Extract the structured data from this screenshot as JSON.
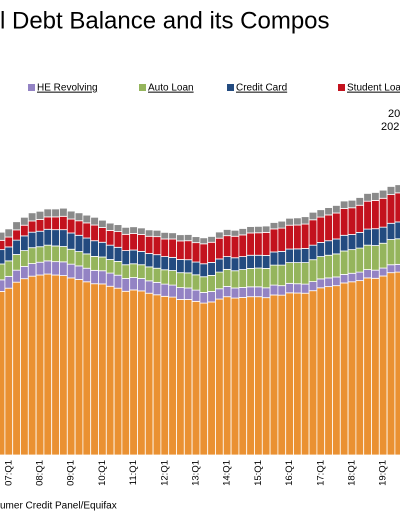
{
  "chart_data": {
    "type": "stacked-bar",
    "title": "l Debt Balance and its Compos",
    "annotations": [
      "20",
      "202"
    ],
    "source": "umer Credit Panel/Equifax",
    "categories": [
      null,
      "07:Q1",
      null,
      null,
      null,
      "08:Q1",
      null,
      null,
      null,
      "09:Q1",
      null,
      null,
      null,
      "10:Q1",
      null,
      null,
      null,
      "11:Q1",
      null,
      null,
      null,
      "12:Q1",
      null,
      null,
      null,
      "13:Q1",
      null,
      null,
      null,
      "14:Q1",
      null,
      null,
      null,
      "15:Q1",
      null,
      null,
      null,
      "16:Q1",
      null,
      null,
      null,
      "17:Q1",
      null,
      null,
      null,
      "18:Q1",
      null,
      null,
      null,
      "19:Q1",
      null,
      null
    ],
    "ylim": [
      0,
      16
    ],
    "series": [
      {
        "color": "#ea9132",
        "values": [
          8.44,
          8.61,
          8.92,
          9.1,
          9.23,
          9.29,
          9.34,
          9.29,
          9.26,
          9.14,
          9.06,
          8.94,
          8.84,
          8.83,
          8.71,
          8.61,
          8.45,
          8.52,
          8.47,
          8.35,
          8.27,
          8.19,
          8.15,
          8.03,
          8.03,
          7.93,
          7.84,
          7.9,
          8.05,
          8.17,
          8.1,
          8.13,
          8.17,
          8.17,
          8.12,
          8.26,
          8.25,
          8.37,
          8.36,
          8.35,
          8.48,
          8.63,
          8.69,
          8.74,
          8.88,
          8.94,
          9.0,
          9.14,
          9.12,
          9.24,
          9.41,
          9.44
        ]
      },
      {
        "name": "HE Revolving",
        "color": "#9383c4",
        "values": [
          0.6,
          0.61,
          0.62,
          0.63,
          0.65,
          0.66,
          0.68,
          0.69,
          0.71,
          0.71,
          0.7,
          0.7,
          0.69,
          0.68,
          0.68,
          0.67,
          0.66,
          0.64,
          0.64,
          0.64,
          0.64,
          0.63,
          0.62,
          0.61,
          0.59,
          0.58,
          0.55,
          0.54,
          0.53,
          0.53,
          0.52,
          0.52,
          0.51,
          0.51,
          0.51,
          0.51,
          0.49,
          0.49,
          0.48,
          0.47,
          0.47,
          0.46,
          0.45,
          0.45,
          0.44,
          0.44,
          0.44,
          0.43,
          0.42,
          0.41,
          0.41,
          0.4
        ]
      },
      {
        "name": "Auto Loan",
        "color": "#95b55c",
        "values": [
          0.82,
          0.8,
          0.81,
          0.82,
          0.82,
          0.8,
          0.81,
          0.81,
          0.79,
          0.77,
          0.74,
          0.74,
          0.72,
          0.71,
          0.7,
          0.71,
          0.71,
          0.71,
          0.71,
          0.72,
          0.73,
          0.74,
          0.75,
          0.77,
          0.78,
          0.79,
          0.81,
          0.83,
          0.86,
          0.88,
          0.89,
          0.92,
          0.95,
          0.97,
          1.0,
          1.03,
          1.06,
          1.07,
          1.09,
          1.11,
          1.13,
          1.15,
          1.17,
          1.19,
          1.21,
          1.22,
          1.24,
          1.26,
          1.27,
          1.28,
          1.3,
          1.32
        ]
      },
      {
        "name": "Credit Card",
        "color": "#234b80",
        "values": [
          0.74,
          0.72,
          0.74,
          0.76,
          0.8,
          0.8,
          0.82,
          0.84,
          0.87,
          0.84,
          0.84,
          0.82,
          0.81,
          0.76,
          0.74,
          0.73,
          0.73,
          0.71,
          0.69,
          0.69,
          0.7,
          0.68,
          0.68,
          0.68,
          0.68,
          0.66,
          0.67,
          0.67,
          0.68,
          0.66,
          0.67,
          0.67,
          0.68,
          0.66,
          0.67,
          0.68,
          0.71,
          0.7,
          0.71,
          0.73,
          0.75,
          0.73,
          0.75,
          0.77,
          0.81,
          0.78,
          0.81,
          0.83,
          0.87,
          0.83,
          0.84,
          0.87
        ]
      },
      {
        "name": "Student Loa",
        "color": "#c3121e",
        "values": [
          0.48,
          0.51,
          0.53,
          0.55,
          0.58,
          0.61,
          0.64,
          0.66,
          0.69,
          0.72,
          0.75,
          0.78,
          0.81,
          0.76,
          0.76,
          0.81,
          0.84,
          0.85,
          0.87,
          0.89,
          0.93,
          0.91,
          0.95,
          0.96,
          0.98,
          1.0,
          1.03,
          1.04,
          1.07,
          1.08,
          1.11,
          1.12,
          1.15,
          1.16,
          1.19,
          1.19,
          1.2,
          1.23,
          1.23,
          1.26,
          1.31,
          1.31,
          1.33,
          1.34,
          1.38,
          1.38,
          1.4,
          1.44,
          1.46,
          1.49,
          1.48,
          1.5
        ]
      },
      {
        "color": "#8a8a8a",
        "values": [
          0.42,
          0.42,
          0.42,
          0.41,
          0.42,
          0.42,
          0.41,
          0.41,
          0.42,
          0.41,
          0.41,
          0.4,
          0.4,
          0.38,
          0.38,
          0.36,
          0.36,
          0.35,
          0.34,
          0.33,
          0.33,
          0.34,
          0.32,
          0.32,
          0.32,
          0.31,
          0.31,
          0.3,
          0.32,
          0.32,
          0.31,
          0.33,
          0.33,
          0.33,
          0.33,
          0.33,
          0.36,
          0.36,
          0.37,
          0.38,
          0.39,
          0.38,
          0.38,
          0.39,
          0.39,
          0.39,
          0.4,
          0.4,
          0.41,
          0.42,
          0.42,
          0.42
        ]
      }
    ]
  }
}
